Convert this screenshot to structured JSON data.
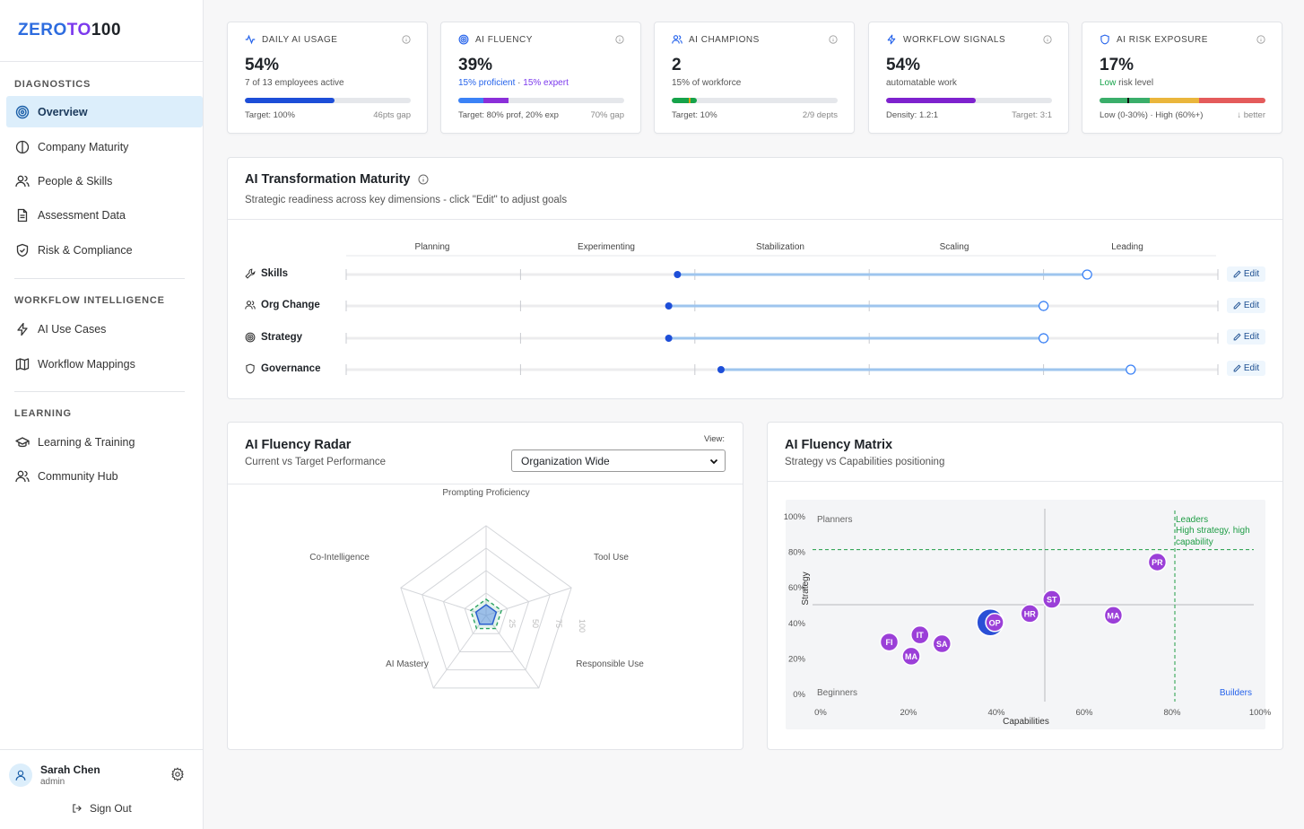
{
  "brand": {
    "logo_part1": "ZERO",
    "logo_part2": "TO",
    "logo_part3": "100"
  },
  "sidebar": {
    "sections": [
      {
        "label": "DIAGNOSTICS"
      },
      {
        "label": "WORKFLOW INTELLIGENCE"
      },
      {
        "label": "LEARNING"
      }
    ],
    "items": [
      {
        "label": "Overview",
        "icon": "target-icon",
        "active": true
      },
      {
        "label": "Company Maturity",
        "icon": "half-circle-icon"
      },
      {
        "label": "People & Skills",
        "icon": "users-icon"
      },
      {
        "label": "Assessment Data",
        "icon": "document-icon"
      },
      {
        "label": "Risk & Compliance",
        "icon": "shield-icon"
      },
      {
        "label": "AI Use Cases",
        "icon": "bolt-icon"
      },
      {
        "label": "Workflow Mappings",
        "icon": "map-icon"
      },
      {
        "label": "Learning & Training",
        "icon": "graduation-cap-icon"
      },
      {
        "label": "Community Hub",
        "icon": "users-icon"
      }
    ],
    "user": {
      "name": "Sarah Chen",
      "role": "admin"
    },
    "sign_out": "Sign Out"
  },
  "kpis": [
    {
      "title": "DAILY AI USAGE",
      "icon": "activity-icon",
      "value": "54%",
      "sub": "7 of 13 employees active",
      "foot_left": "Target: 100%",
      "foot_right": "46pts gap",
      "progress": 0.54
    },
    {
      "title": "AI FLUENCY",
      "icon": "target-icon",
      "value": "39%",
      "sub_a": "15% proficient",
      "sub_sep": " · ",
      "sub_b": "15% expert",
      "foot_left": "Target: 80% prof, 20% exp",
      "foot_right": "70% gap",
      "proficient": 0.15,
      "expert": 0.15
    },
    {
      "title": "AI CHAMPIONS",
      "icon": "users-icon",
      "value": "2",
      "sub": "15% of workforce",
      "foot_left": "Target: 10%",
      "foot_right": "2/9 depts",
      "progress": 0.15,
      "target": 0.1
    },
    {
      "title": "WORKFLOW SIGNALS",
      "icon": "bolt-icon",
      "value": "54%",
      "sub": "automatable work",
      "foot_left": "Density: 1.2:1",
      "foot_right": "Target: 3:1",
      "progress": 0.54
    },
    {
      "title": "AI RISK EXPOSURE",
      "icon": "shield-icon",
      "value": "17%",
      "sub_a": "Low",
      "sub_b": " risk level",
      "foot_left": "Low (0-30%) · High (60%+)",
      "foot_right": "↓ better",
      "marker": 0.17
    }
  ],
  "maturity": {
    "title": "AI Transformation Maturity",
    "subtitle": "Strategic readiness across key dimensions - click \"Edit\" to adjust goals",
    "stages": [
      "Planning",
      "Experimenting",
      "Stabilization",
      "Scaling",
      "Leading"
    ],
    "edit_label": "Edit",
    "rows": [
      {
        "label": "Skills",
        "icon": "wrench-icon",
        "current": 0.38,
        "target": 0.85
      },
      {
        "label": "Org Change",
        "icon": "users-icon",
        "current": 0.37,
        "target": 0.8
      },
      {
        "label": "Strategy",
        "icon": "target-icon",
        "current": 0.37,
        "target": 0.8
      },
      {
        "label": "Governance",
        "icon": "shield-icon",
        "current": 0.43,
        "target": 0.9
      }
    ]
  },
  "radar": {
    "title": "AI Fluency Radar",
    "subtitle": "Current vs Target Performance",
    "view_label": "View:",
    "view_value": "Organization Wide",
    "axes": [
      "Prompting Proficiency",
      "Tool Use",
      "Responsible Use",
      "AI Mastery",
      "Co-Intelligence"
    ],
    "ticks": [
      "25",
      "50",
      "75",
      "100"
    ],
    "current": [
      0.12,
      0.12,
      0.12,
      0.12,
      0.12
    ],
    "target": [
      0.18,
      0.18,
      0.18,
      0.18,
      0.18
    ]
  },
  "chart_data": {
    "type": "scatter",
    "title": "AI Fluency Matrix",
    "subtitle": "Strategy vs Capabilities positioning",
    "xlabel": "Capabilities",
    "ylabel": "Strategy",
    "xlim": [
      0,
      100
    ],
    "ylim": [
      0,
      100
    ],
    "x_ticks": [
      "0%",
      "20%",
      "40%",
      "60%",
      "80%",
      "100%"
    ],
    "y_ticks": [
      "0%",
      "20%",
      "40%",
      "60%",
      "80%",
      "100%"
    ],
    "quadrants": {
      "top_left": "Planners",
      "bottom_left": "Beginners",
      "bottom_right": "Builders",
      "top_right_title": "Leaders",
      "top_right_desc_1": "High strategy, high",
      "top_right_desc_2": "capability"
    },
    "points": [
      {
        "label": "PR",
        "x": 76,
        "y": 74
      },
      {
        "label": "ST",
        "x": 52,
        "y": 53
      },
      {
        "label": "HR",
        "x": 47,
        "y": 45
      },
      {
        "label": "MA",
        "x": 66,
        "y": 44
      },
      {
        "label": "Y",
        "x": 38,
        "y": 40,
        "highlight": true
      },
      {
        "label": "OP",
        "x": 39,
        "y": 40
      },
      {
        "label": "IT",
        "x": 22,
        "y": 33
      },
      {
        "label": "SA",
        "x": 27,
        "y": 28
      },
      {
        "label": "FI",
        "x": 15,
        "y": 29
      },
      {
        "label": "MA",
        "x": 20,
        "y": 21
      }
    ],
    "colors": {
      "point": "#9b3fd8",
      "highlight": "#2a4fd6",
      "leaders": "#1f9d46"
    }
  }
}
